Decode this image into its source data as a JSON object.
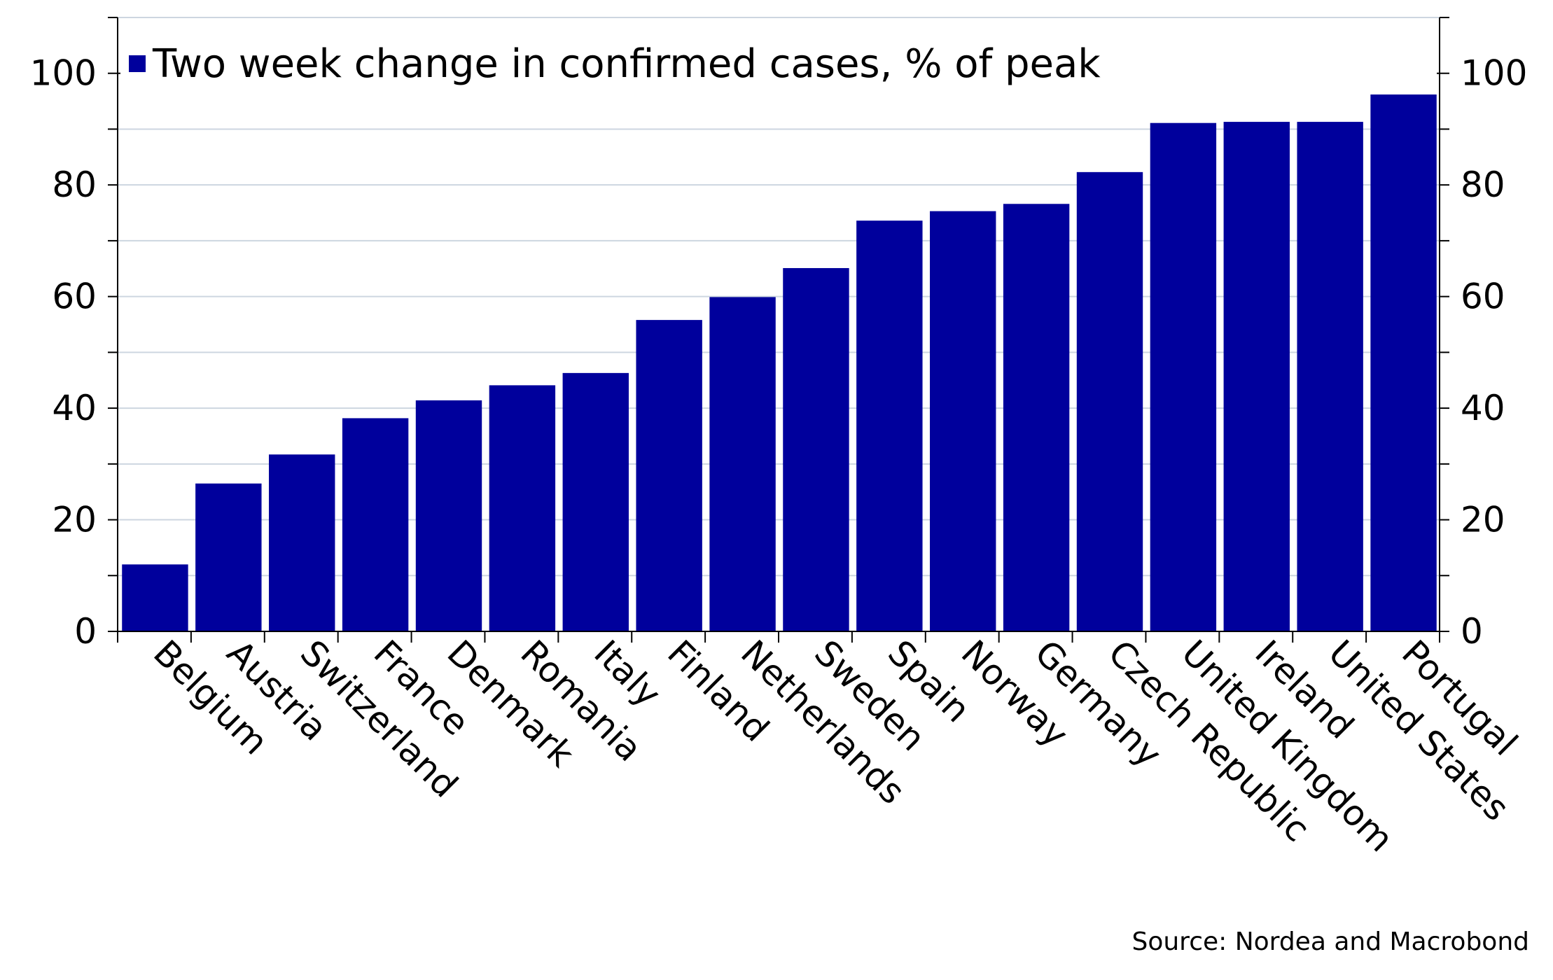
{
  "chart_data": {
    "type": "bar",
    "legend": "Two week change in confirmed cases, % of peak",
    "legend_position": "top-left",
    "source": "Source: Nordea and Macrobond",
    "categories": [
      "Belgium",
      "Austria",
      "Switzerland",
      "France",
      "Denmark",
      "Romania",
      "Italy",
      "Finland",
      "Netherlands",
      "Sweden",
      "Spain",
      "Norway",
      "Germany",
      "Czech Republic",
      "United Kingdom",
      "Ireland",
      "United States",
      "Portugal"
    ],
    "series": [
      {
        "name": "Two week change in confirmed cases, % of peak",
        "values": [
          12,
          26.5,
          31.7,
          38.2,
          41.4,
          44.1,
          46.3,
          55.8,
          59.9,
          65.1,
          73.6,
          75.3,
          76.6,
          82.3,
          91.1,
          91.3,
          91.3,
          100
        ]
      }
    ],
    "ylim": [
      0,
      110
    ],
    "yticks": [
      0,
      20,
      40,
      60,
      80,
      100
    ],
    "y_axis_both_sides": true,
    "grid": true,
    "colors": {
      "bar": "#00009c",
      "grid": "#cdd6e0",
      "axis": "#000000"
    }
  }
}
